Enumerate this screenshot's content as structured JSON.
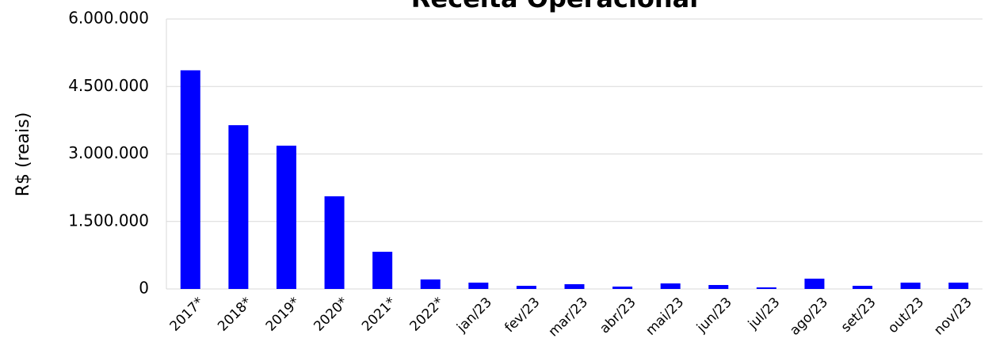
{
  "chart_data": {
    "type": "bar",
    "title": "Receita Operacional",
    "y_label": "R$ (reais)",
    "categories": [
      "2017*",
      "2018*",
      "2019*",
      "2020*",
      "2021*",
      "2022*",
      "jan/23",
      "fev/23",
      "mar/23",
      "abr/23",
      "mai/23",
      "jun/23",
      "jul/23",
      "ago/23",
      "set/23",
      "out/23",
      "nov/23"
    ],
    "values": [
      4860000,
      3640000,
      3185000,
      2060000,
      827000,
      211000,
      141000,
      70000,
      106000,
      53000,
      123000,
      88000,
      35000,
      229000,
      70000,
      141000,
      141000
    ],
    "color": "#0000ff",
    "ylim": [
      0,
      6000000
    ],
    "yticks": [
      0,
      {
        "value": 1500000,
        "label": "1.500.000"
      },
      {
        "value": 3000000,
        "label": "3.000.000"
      },
      {
        "value": 4500000,
        "label": "4.500.000"
      },
      {
        "value": 6000000,
        "label": "6.000.000"
      }
    ],
    "grid": true
  }
}
